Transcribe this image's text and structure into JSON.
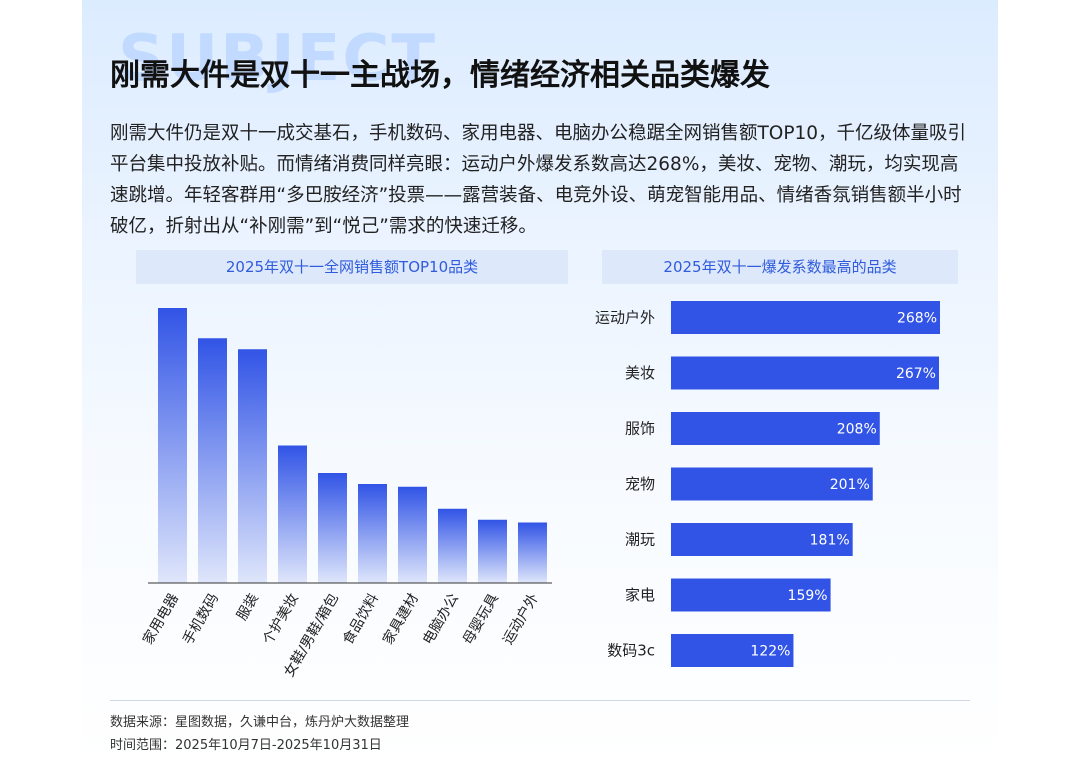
{
  "watermark": "SUBJECT",
  "title": "刚需大件是双十一主战场，情绪经济相关品类爆发",
  "body": "刚需大件仍是双十一成交基石，手机数码、家用电器、电脑办公稳踞全网销售额TOP10，千亿级体量吸引平台集中投放补贴。而情绪消费同样亮眼：运动户外爆发系数高达268%，美妆、宠物、潮玩，均实现高速跳增。年轻客群用“多巴胺经济”投票——露营装备、电竞外设、萌宠智能用品、情绪香氛销售额半小时破亿，折射出从“补刚需”到“悦己”需求的快速迁移。",
  "footer": {
    "source": "数据来源：星图数据，久谦中台，炼丹炉大数据整理",
    "range": "时间范围：2025年10月7日-2025年10月31日"
  },
  "chart_data": [
    {
      "type": "bar",
      "title": "2025年双十一全网销售额TOP10品类",
      "categories": [
        "家用电器",
        "手机数码",
        "服装",
        "个护美妆",
        "女鞋/男鞋/箱包",
        "食品饮料",
        "家具建材",
        "电脑办公",
        "母婴玩具",
        "运动户外"
      ],
      "values": [
        100,
        89,
        85,
        50,
        40,
        36,
        35,
        27,
        23,
        22
      ],
      "note_axis": "",
      "ylim": [
        0,
        100
      ],
      "grid": false,
      "colors": {
        "top": "#3154e6",
        "bottom": "#dfe6fb"
      }
    },
    {
      "type": "bar",
      "orientation": "horizontal",
      "title": "2025年双十一爆发系数最高的品类",
      "categories": [
        "运动户外",
        "美妆",
        "服饰",
        "宠物",
        "潮玩",
        "家电",
        "数码3c"
      ],
      "values": [
        268,
        267,
        208,
        201,
        181,
        159,
        122
      ],
      "labels": [
        "268%",
        "267%",
        "208%",
        "201%",
        "181%",
        "159%",
        "122%"
      ],
      "xlim": [
        0,
        268
      ],
      "grid": false,
      "colors": {
        "bar": "#3154e6",
        "label": "#ffffff"
      }
    }
  ]
}
